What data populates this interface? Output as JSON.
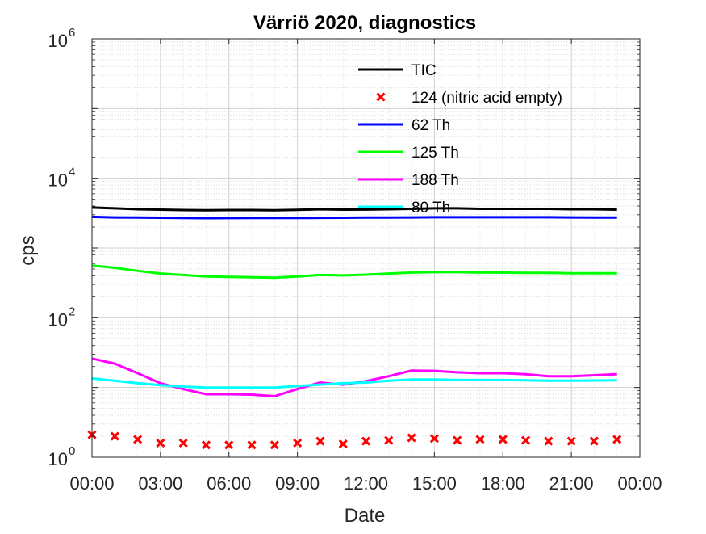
{
  "chart_data": {
    "type": "line",
    "title": "Värriö 2020, diagnostics",
    "xlabel": "Date",
    "ylabel": "cps",
    "yscale": "log",
    "ylim": [
      1,
      1000000
    ],
    "xlim": [
      "00:00",
      "24:00"
    ],
    "grid": true,
    "minor_grid": true,
    "legend_position": "top-right",
    "x_tick_labels": [
      "00:00",
      "03:00",
      "06:00",
      "09:00",
      "12:00",
      "15:00",
      "18:00",
      "21:00",
      "00:00"
    ],
    "y_ticks": [
      {
        "base": "10",
        "exp": "0"
      },
      {
        "base": "10",
        "exp": "2"
      },
      {
        "base": "10",
        "exp": "4"
      },
      {
        "base": "10",
        "exp": "6"
      }
    ],
    "x_hours": [
      0,
      1,
      2,
      3,
      4,
      5,
      6,
      7,
      8,
      9,
      10,
      11,
      12,
      13,
      14,
      15,
      16,
      17,
      18,
      19,
      20,
      21,
      22,
      23
    ],
    "series": [
      {
        "name": "TIC",
        "style": "line",
        "color": "#000000",
        "values": [
          3800,
          3700,
          3600,
          3550,
          3500,
          3480,
          3500,
          3500,
          3480,
          3520,
          3600,
          3550,
          3560,
          3600,
          3650,
          3700,
          3700,
          3650,
          3650,
          3650,
          3650,
          3600,
          3600,
          3550
        ]
      },
      {
        "name": "124 (nitric acid empty)",
        "style": "marker",
        "color": "#ff0000",
        "values": [
          2.1,
          2.0,
          1.8,
          1.6,
          1.6,
          1.5,
          1.5,
          1.5,
          1.5,
          1.6,
          1.7,
          1.55,
          1.7,
          1.75,
          1.9,
          1.85,
          1.75,
          1.8,
          1.8,
          1.75,
          1.7,
          1.7,
          1.7,
          1.8
        ]
      },
      {
        "name": "62 Th",
        "style": "line",
        "color": "#0000ff",
        "values": [
          2800,
          2750,
          2730,
          2720,
          2700,
          2680,
          2690,
          2700,
          2700,
          2700,
          2710,
          2720,
          2730,
          2740,
          2750,
          2760,
          2760,
          2760,
          2760,
          2760,
          2760,
          2750,
          2740,
          2730
        ]
      },
      {
        "name": "125 Th",
        "style": "line",
        "color": "#00ff00",
        "values": [
          560,
          520,
          470,
          430,
          410,
          390,
          385,
          380,
          375,
          390,
          410,
          405,
          415,
          430,
          445,
          450,
          450,
          445,
          445,
          440,
          440,
          435,
          435,
          435
        ]
      },
      {
        "name": "188 Th",
        "style": "line",
        "color": "#ff00ff",
        "values": [
          26,
          22,
          16,
          11.5,
          9.5,
          8.0,
          8.0,
          7.9,
          7.5,
          9.5,
          11.8,
          11.0,
          12.3,
          14.5,
          17.5,
          17.3,
          16.5,
          16.0,
          16.0,
          15.5,
          14.5,
          14.5,
          15.0,
          15.5
        ]
      },
      {
        "name": "80 Th",
        "style": "line",
        "color": "#00ffff",
        "values": [
          13.5,
          12.5,
          11.5,
          10.8,
          10.3,
          10.0,
          10.0,
          10.0,
          10.0,
          10.5,
          11.0,
          11.5,
          11.8,
          12.5,
          13.0,
          13.0,
          12.8,
          12.8,
          12.8,
          12.7,
          12.5,
          12.5,
          12.6,
          12.7
        ]
      }
    ]
  }
}
